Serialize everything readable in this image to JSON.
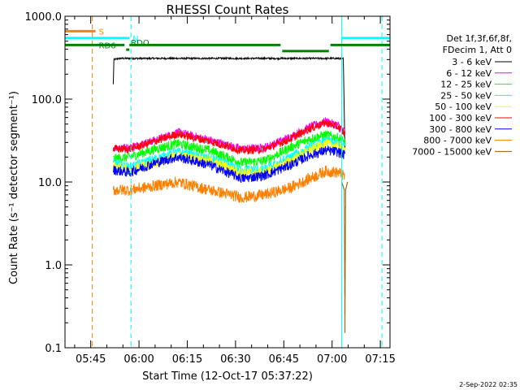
{
  "chart_data": {
    "type": "line",
    "title": "RHESSI Count Rates",
    "ylabel": "Count Rate (s⁻¹ detector segment⁻¹)",
    "xlabel": "Start Time (12-Oct-17 05:37:22)",
    "yscale": "log",
    "ylim": [
      0.1,
      1000
    ],
    "xlim_minutes_after_0537": [
      0,
      101
    ],
    "y_ticks": [
      {
        "value": 1000,
        "label": "1000.0"
      },
      {
        "value": 100,
        "label": "100.0"
      },
      {
        "value": 10,
        "label": "10.0"
      },
      {
        "value": 1,
        "label": "1.0"
      },
      {
        "value": 0.1,
        "label": "0.1"
      }
    ],
    "x_ticks": [
      {
        "minute": 8,
        "label": "05:45"
      },
      {
        "minute": 23,
        "label": "06:00"
      },
      {
        "minute": 38,
        "label": "06:15"
      },
      {
        "minute": 53,
        "label": "06:30"
      },
      {
        "minute": 68,
        "label": "06:45"
      },
      {
        "minute": 83,
        "label": "07:00"
      },
      {
        "minute": 98,
        "label": "07:15"
      }
    ],
    "legend_header": [
      "Det 1f,3f,6f,8f,",
      "FDecim 1, Att 0"
    ],
    "series": [
      {
        "name": "3 - 6 keV",
        "color": "#000000",
        "x_minutes": [
          15,
          15.2,
          16,
          17,
          85,
          86.5,
          87
        ],
        "values": [
          150,
          300,
          305,
          310,
          310,
          305,
          25
        ],
        "noise": 0.01
      },
      {
        "name": "6 - 12 keV",
        "color": "#ff00ff",
        "x_minutes": [
          15,
          20,
          28,
          35,
          45,
          55,
          62,
          70,
          76,
          81,
          85,
          87
        ],
        "values": [
          26,
          26,
          32,
          40,
          32,
          25,
          26,
          35,
          46,
          54,
          48,
          40
        ],
        "noise": 0.05
      },
      {
        "name": "12 - 25 keV",
        "color": "#00ff00",
        "x_minutes": [
          15,
          20,
          28,
          35,
          45,
          55,
          62,
          70,
          76,
          81,
          85,
          87
        ],
        "values": [
          19,
          20,
          25,
          29,
          24,
          17,
          18,
          26,
          33,
          37,
          34,
          30
        ],
        "noise": 0.06
      },
      {
        "name": "25 - 50 keV",
        "color": "#00ffff",
        "x_minutes": [
          15,
          20,
          28,
          35,
          45,
          55,
          62,
          70,
          76,
          81,
          85,
          87
        ],
        "values": [
          17,
          15,
          19,
          23,
          19,
          14,
          14,
          20,
          26,
          31,
          29,
          27
        ],
        "noise": 0.06
      },
      {
        "name": "50 - 100 keV",
        "color": "#ffff00",
        "x_minutes": [
          15,
          20,
          28,
          35,
          45,
          55,
          62,
          70,
          76,
          81,
          85,
          87
        ],
        "values": [
          16,
          14,
          17,
          21,
          18,
          13,
          13,
          18,
          24,
          29,
          27,
          25
        ],
        "noise": 0.06
      },
      {
        "name": "100 - 300 keV",
        "color": "#ff0000",
        "x_minutes": [
          15,
          20,
          28,
          35,
          45,
          55,
          62,
          70,
          76,
          81,
          85,
          87
        ],
        "values": [
          25,
          25,
          31,
          38,
          31,
          24,
          25,
          33,
          44,
          52,
          46,
          38
        ],
        "noise": 0.05
      },
      {
        "name": "300 - 800 keV",
        "color": "#0000ff",
        "x_minutes": [
          15,
          20,
          28,
          35,
          45,
          55,
          62,
          70,
          76,
          81,
          85,
          87
        ],
        "values": [
          14,
          13,
          17,
          20,
          16,
          11,
          12,
          16,
          21,
          24,
          23,
          21
        ],
        "noise": 0.06
      },
      {
        "name": "800 - 7000 keV",
        "color": "#ff8000",
        "x_minutes": [
          15,
          20,
          28,
          35,
          45,
          55,
          62,
          70,
          76,
          81,
          85,
          87
        ],
        "values": [
          8,
          8,
          9,
          10,
          8,
          6.5,
          7,
          8.5,
          11,
          13.5,
          13,
          11.5
        ],
        "noise": 0.07
      },
      {
        "name": "7000 - 15000 keV",
        "color": "#a06000",
        "x_minutes": [
          86,
          86.8,
          87,
          87.2,
          87.8
        ],
        "values": [
          10,
          8,
          0.15,
          8,
          10
        ],
        "noise": 0
      }
    ],
    "annotations": {
      "bars": [
        {
          "label": "S",
          "color": "#ff8000",
          "x_minutes": [
            0,
            9.5
          ],
          "y": 660,
          "label_x": 10.5
        },
        {
          "label": "N",
          "color": "#00ffff",
          "x_minutes": [
            0,
            20
          ],
          "y": 545,
          "label_x": 21
        },
        {
          "label": "N",
          "color": "#00ffff",
          "x_minutes": [
            86,
            101
          ],
          "y": 545,
          "label_x": null
        },
        {
          "label": "RD6",
          "color": "#008000",
          "x_minutes": [
            0,
            18.5
          ],
          "y": 450,
          "label_x": 10.5
        },
        {
          "label": "",
          "color": "#008000",
          "x_minutes": [
            19,
            20
          ],
          "y": 395,
          "label_x": null
        },
        {
          "label": "",
          "color": "#008000",
          "x_minutes": [
            20,
            67
          ],
          "y": 450,
          "label_x": null
        },
        {
          "label": "",
          "color": "#008000",
          "x_minutes": [
            67.5,
            82
          ],
          "y": 380,
          "label_x": null
        },
        {
          "label": "",
          "color": "#008000",
          "x_minutes": [
            82.5,
            101
          ],
          "y": 450,
          "label_x": null
        },
        {
          "label": "RDO",
          "color": "#008000",
          "x_minutes": null,
          "y": 485,
          "label_x": 20.5
        }
      ],
      "vlines": [
        {
          "minute": 0,
          "color": "#00ffff",
          "dashed": false
        },
        {
          "minute": 8.5,
          "color": "#ff8000",
          "dashed": true
        },
        {
          "minute": 20.5,
          "color": "#00ffff",
          "dashed": true
        },
        {
          "minute": 86,
          "color": "#00ffff",
          "dashed": false
        },
        {
          "minute": 98.5,
          "color": "#00ffff",
          "dashed": true
        }
      ]
    },
    "timestamp": "2-Sep-2022 02:35"
  }
}
